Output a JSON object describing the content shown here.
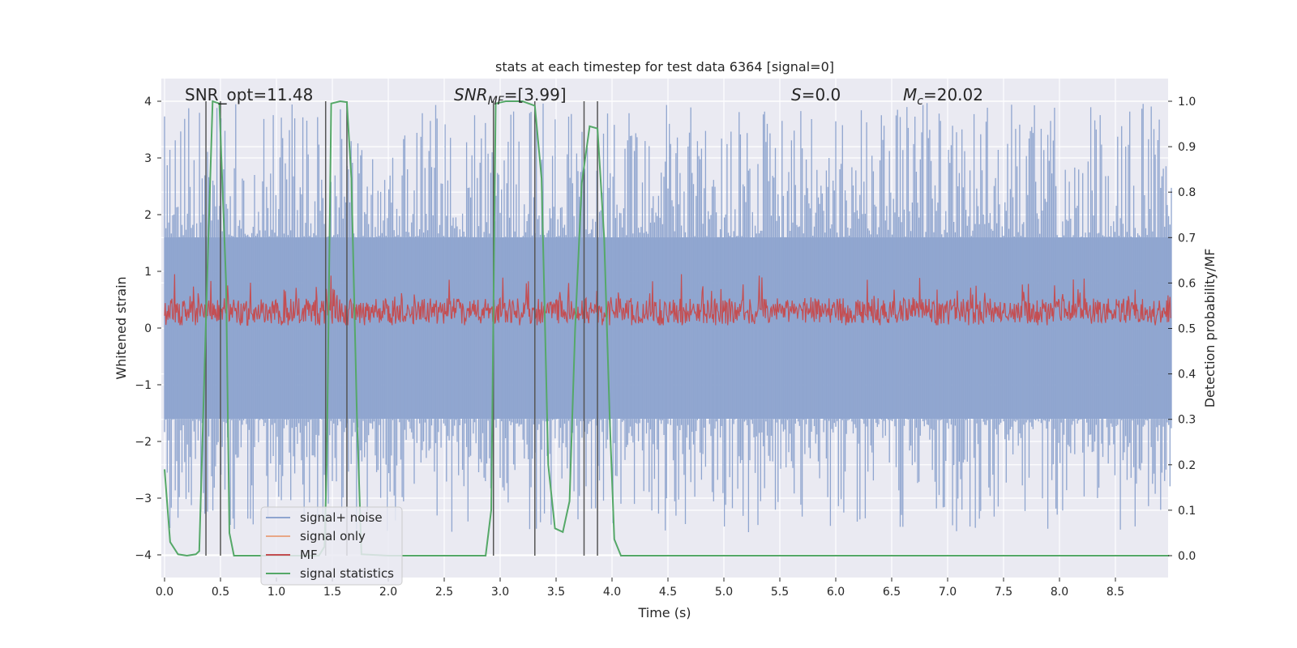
{
  "chart_data": {
    "type": "line",
    "title": "stats at each timestep for test data 6364 [signal=0]",
    "xlabel": "Time (s)",
    "ylabel": "Whitened strain",
    "ylabel_right": "Detection probability/MF",
    "xlim": [
      0.0,
      9.0
    ],
    "ylim": [
      -4.4,
      4.4
    ],
    "ylim_right": [
      -0.05,
      1.05
    ],
    "xticks": [
      "0.0",
      "0.5",
      "1.0",
      "1.5",
      "2.0",
      "2.5",
      "3.0",
      "3.5",
      "4.0",
      "4.5",
      "5.0",
      "5.5",
      "6.0",
      "6.5",
      "7.0",
      "7.5",
      "8.0",
      "8.5"
    ],
    "yticks": [
      "4",
      "3",
      "2",
      "1",
      "0",
      "−1",
      "−2",
      "−3",
      "−4"
    ],
    "yticks_right": [
      "1.0",
      "0.9",
      "0.8",
      "0.7",
      "0.6",
      "0.5",
      "0.4",
      "0.3",
      "0.2",
      "0.1",
      "0.0"
    ],
    "annotations": {
      "snr_opt": "SNR_opt=11.48",
      "snr_mf_sym": "SNR",
      "snr_mf_sub": "MF",
      "snr_mf_val": "=[3.99]",
      "s_sym": "S",
      "s_val": "=0.0",
      "mc_sym": "M",
      "mc_sub": "c",
      "mc_val": "=20.02"
    },
    "grid": true,
    "legend_position": "lower-left",
    "legend": [
      {
        "label": "signal+ noise",
        "color": "#8fa5cf"
      },
      {
        "label": "signal only",
        "color": "#e8a786"
      },
      {
        "label": "MF",
        "color": "#c44e52"
      },
      {
        "label": "signal statistics",
        "color": "#55a868"
      }
    ],
    "colors": {
      "noise": "#8fa5cf",
      "mf": "#c44e52",
      "stats": "#55a868",
      "vlines": "#555555",
      "background": "#eaeaf2",
      "grid": "#ffffff"
    },
    "series": [
      {
        "name": "signal statistics",
        "axis": "right",
        "points": [
          [
            0.0,
            0.19
          ],
          [
            0.05,
            0.03
          ],
          [
            0.12,
            0.003
          ],
          [
            0.2,
            0.0
          ],
          [
            0.28,
            0.003
          ],
          [
            0.31,
            0.01
          ],
          [
            0.38,
            0.6
          ],
          [
            0.43,
            1.0
          ],
          [
            0.49,
            0.995
          ],
          [
            0.55,
            0.6
          ],
          [
            0.58,
            0.05
          ],
          [
            0.62,
            0.0
          ],
          [
            1.0,
            0.0
          ],
          [
            1.38,
            0.0
          ],
          [
            1.43,
            0.02
          ],
          [
            1.45,
            0.2
          ],
          [
            1.49,
            0.995
          ],
          [
            1.57,
            1.0
          ],
          [
            1.63,
            0.998
          ],
          [
            1.67,
            0.83
          ],
          [
            1.72,
            0.3
          ],
          [
            1.76,
            0.003
          ],
          [
            2.0,
            0.0
          ],
          [
            2.6,
            0.0
          ],
          [
            2.87,
            0.0
          ],
          [
            2.92,
            0.1
          ],
          [
            2.96,
            0.995
          ],
          [
            3.05,
            1.0
          ],
          [
            3.2,
            1.0
          ],
          [
            3.31,
            0.99
          ],
          [
            3.37,
            0.83
          ],
          [
            3.43,
            0.2
          ],
          [
            3.49,
            0.06
          ],
          [
            3.56,
            0.052
          ],
          [
            3.62,
            0.12
          ],
          [
            3.67,
            0.5
          ],
          [
            3.73,
            0.82
          ],
          [
            3.8,
            0.945
          ],
          [
            3.87,
            0.94
          ],
          [
            3.93,
            0.7
          ],
          [
            3.98,
            0.3
          ],
          [
            4.02,
            0.036
          ],
          [
            4.08,
            0.0
          ],
          [
            5.0,
            0.0
          ],
          [
            6.0,
            0.0
          ],
          [
            7.0,
            0.0
          ],
          [
            8.0,
            0.0
          ],
          [
            8.98,
            0.0
          ]
        ]
      }
    ],
    "vlines_x": [
      0.37,
      0.5,
      1.44,
      1.63,
      2.94,
      3.31,
      3.75,
      3.87
    ],
    "noise_band": {
      "low": -1.6,
      "high": 1.6,
      "peak_max": 4.0,
      "peak_min": -3.6
    },
    "mf_band": {
      "center": 0.3,
      "low": 0.05,
      "high": 0.95
    }
  }
}
